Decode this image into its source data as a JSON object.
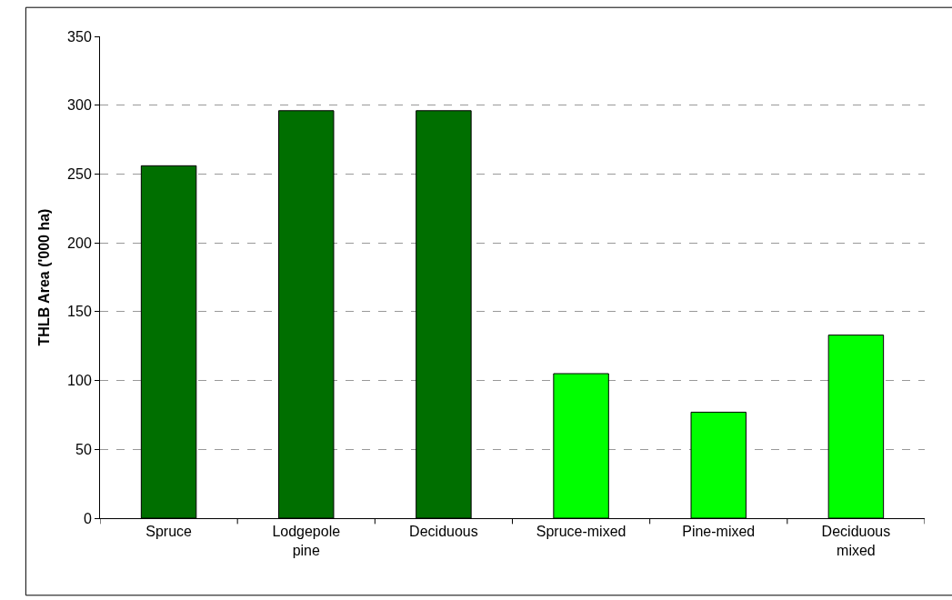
{
  "chart_data": {
    "type": "bar",
    "ylabel": "THLB Area ('000 ha)",
    "categories": [
      "Spruce",
      "Lodgepole pine",
      "Deciduous",
      "Spruce-mixed",
      "Pine-mixed",
      "Deciduous mixed"
    ],
    "values": [
      256,
      296,
      296,
      105,
      77,
      133
    ],
    "colors": [
      "#006f00",
      "#006f00",
      "#006f00",
      "#00ff00",
      "#00ff00",
      "#00ff00"
    ],
    "ylim": [
      0,
      350
    ],
    "yticks": [
      0,
      50,
      100,
      150,
      200,
      250,
      300,
      350
    ],
    "grid": "y"
  }
}
